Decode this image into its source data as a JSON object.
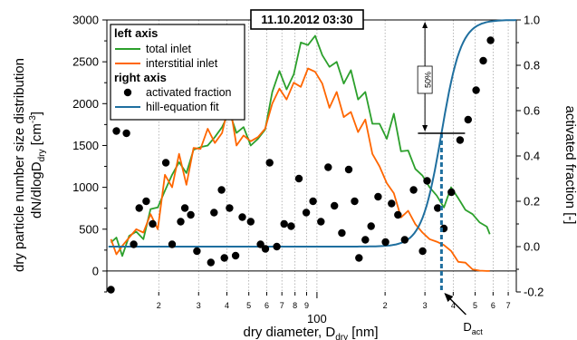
{
  "chart_data": {
    "type": "line",
    "timestamp": "11.10.2012 03:30",
    "xlabel": {
      "main": "dry diameter, D",
      "sub": "dry",
      "unit": " [nm]"
    },
    "ylabel_left": {
      "line1": "dry particle number size distribution",
      "line2a": "dN/dlogD",
      "line2sub": "dry",
      "line2b": " [cm",
      "line2sup": "-3",
      "line2c": "]"
    },
    "ylabel_right": "activated fraction [-]",
    "x_scale": "log",
    "xlim": [
      11.8,
      760
    ],
    "ylim_left": [
      -250,
      3000
    ],
    "ylim_right": [
      -0.2,
      1.0
    ],
    "x_tick_major": [
      {
        "v": 100,
        "label": "100"
      }
    ],
    "x_tick_minor_labels": [
      {
        "v": 20,
        "label": "2"
      },
      {
        "v": 30,
        "label": "3"
      },
      {
        "v": 40,
        "label": "4"
      },
      {
        "v": 50,
        "label": "5"
      },
      {
        "v": 60,
        "label": "6"
      },
      {
        "v": 70,
        "label": "7"
      },
      {
        "v": 80,
        "label": "8"
      },
      {
        "v": 90,
        "label": "9"
      },
      {
        "v": 200,
        "label": "2"
      },
      {
        "v": 300,
        "label": "3"
      },
      {
        "v": 400,
        "label": "4"
      },
      {
        "v": 500,
        "label": "5"
      },
      {
        "v": 600,
        "label": "6"
      },
      {
        "v": 700,
        "label": "7"
      }
    ],
    "y_left_ticks": [
      0,
      500,
      1000,
      1500,
      2000,
      2500,
      3000
    ],
    "y_right_ticks": [
      {
        "v": -0.2,
        "label": "-0.2"
      },
      {
        "v": 0.0,
        "label": "0.0"
      },
      {
        "v": 0.2,
        "label": "0.2"
      },
      {
        "v": 0.4,
        "label": "0.4"
      },
      {
        "v": 0.6,
        "label": "0.6"
      },
      {
        "v": 0.8,
        "label": "0.8"
      },
      {
        "v": 1.0,
        "label": "1.0"
      }
    ],
    "legend": {
      "left_head": "left axis",
      "right_head": "right axis",
      "items": [
        {
          "label": "total inlet",
          "kind": "line",
          "color": "#2ca02c"
        },
        {
          "label": "interstitial inlet",
          "kind": "line",
          "color": "#ff6600"
        },
        {
          "label": "activated fraction",
          "kind": "marker",
          "color": "#000000"
        },
        {
          "label": "hill-equation fit",
          "kind": "line",
          "color": "#1f6f9f"
        }
      ]
    },
    "annotations": {
      "fifty_label": "50%",
      "dact_main": "D",
      "dact_sub": "act",
      "dact_value": 355
    },
    "series": [
      {
        "name": "total inlet",
        "axis": "left",
        "color": "#2ca02c",
        "x": [
          12.3,
          13.0,
          13.8,
          14.8,
          15.9,
          17.1,
          18.4,
          19.8,
          21.3,
          22.9,
          24.6,
          26.5,
          28.5,
          30.6,
          32.9,
          35.4,
          38.1,
          41.0,
          44.1,
          47.4,
          51.0,
          54.9,
          59.0,
          63.5,
          68.3,
          73.4,
          79.0,
          84.9,
          91.3,
          98.2,
          105.6,
          113.6,
          122.2,
          131.4,
          141.3,
          152.0,
          163.5,
          175.8,
          189.1,
          203.4,
          218.7,
          235.2,
          253.0,
          272.1,
          292.6,
          314.7,
          338.5,
          364.1,
          391.6,
          421.1,
          452.9,
          487.1,
          523.9,
          563.5,
          580.0
        ],
        "y": [
          340,
          400,
          180,
          420,
          470,
          380,
          740,
          760,
          960,
          1150,
          1300,
          1170,
          1450,
          1480,
          1500,
          1600,
          1720,
          1900,
          1650,
          1720,
          1500,
          1580,
          1690,
          2140,
          2390,
          2170,
          2350,
          2730,
          2700,
          2810,
          2580,
          2440,
          2500,
          2240,
          2400,
          2050,
          2140,
          1760,
          1760,
          1580,
          1880,
          1430,
          1440,
          1220,
          1140,
          1000,
          900,
          760,
          1000,
          870,
          730,
          680,
          580,
          530,
          440
        ]
      },
      {
        "name": "interstitial inlet",
        "axis": "left",
        "color": "#ff6600",
        "x": [
          12.3,
          13.0,
          13.8,
          14.8,
          15.9,
          17.1,
          18.4,
          19.8,
          21.3,
          22.9,
          24.6,
          26.5,
          28.5,
          30.6,
          32.9,
          35.4,
          38.1,
          41.0,
          44.1,
          47.4,
          51.0,
          54.9,
          59.0,
          63.5,
          68.3,
          73.4,
          79.0,
          84.9,
          91.3,
          98.2,
          105.6,
          113.6,
          122.2,
          131.4,
          141.3,
          152.0,
          163.5,
          175.8,
          189.1,
          203.4,
          218.7,
          235.2,
          253.0,
          272.1,
          292.6,
          314.7,
          338.5,
          364.1,
          391.6,
          421.1,
          452.9,
          487.1,
          523.9,
          563.5,
          580.0
        ],
        "y": [
          380,
          200,
          300,
          400,
          500,
          460,
          680,
          500,
          1150,
          1000,
          1400,
          1030,
          1470,
          1460,
          1700,
          1530,
          1650,
          2020,
          1500,
          1620,
          1550,
          1600,
          1700,
          2000,
          2180,
          2050,
          2250,
          2200,
          2420,
          2380,
          2240,
          1950,
          2140,
          1840,
          1900,
          1660,
          1810,
          1400,
          1250,
          1050,
          930,
          640,
          720,
          560,
          460,
          380,
          350,
          310,
          240,
          110,
          100,
          20,
          5,
          0,
          0
        ]
      },
      {
        "name": "activated fraction",
        "axis": "right",
        "color": "#000000",
        "x": [
          12.3,
          13.0,
          14.4,
          15.5,
          16.4,
          17.6,
          18.8,
          21.5,
          22.9,
          25.0,
          26.1,
          27.7,
          29.5,
          34.0,
          35.1,
          37.9,
          39.0,
          41.1,
          43.7,
          46.8,
          51.0,
          56.3,
          59.2,
          61.8,
          66.5,
          71.6,
          76.9,
          83.2,
          89.7,
          96.1,
          104.1,
          112.1,
          119.5,
          128.8,
          138.2,
          146.7,
          153.4,
          163.5,
          173.5,
          186.2,
          200.8,
          213.6,
          227.9,
          244.3,
          267.3,
          293.1,
          306.6,
          341.6,
          363.7,
          392.7,
          428.9,
          465.6,
          504.9,
          543.1,
          585.0
        ],
        "y": [
          -0.19,
          0.51,
          0.5,
          0.01,
          0.17,
          0.2,
          0.1,
          0.37,
          0.01,
          0.11,
          0.17,
          0.14,
          -0.02,
          -0.07,
          0.15,
          0.25,
          -0.05,
          0.17,
          -0.04,
          0.13,
          0.11,
          0.01,
          -0.01,
          0.37,
          0.0,
          0.1,
          0.09,
          0.3,
          0.15,
          0.2,
          0.11,
          0.35,
          0.18,
          0.06,
          0.34,
          0.2,
          -0.05,
          0.03,
          0.09,
          0.22,
          0.02,
          0.19,
          0.14,
          0.03,
          0.25,
          -0.02,
          0.29,
          0.17,
          0.08,
          0.24,
          0.47,
          0.56,
          0.69,
          0.82,
          0.91
        ]
      },
      {
        "name": "hill-equation fit",
        "axis": "right",
        "color": "#1f6f9f",
        "D50": 355,
        "hill_n": 10,
        "x_range": [
          12,
          760
        ]
      }
    ]
  }
}
